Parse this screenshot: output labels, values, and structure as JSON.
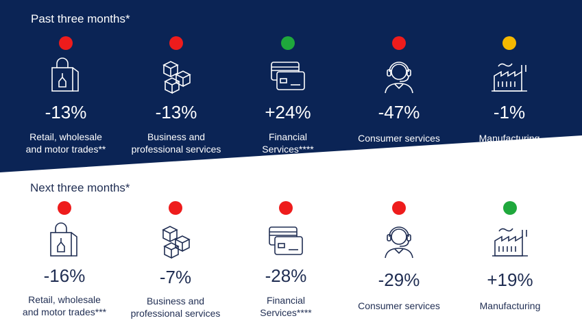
{
  "past": {
    "title": "Past three months*",
    "items": [
      {
        "pct": "-13%",
        "line1": "Retail, wholesale",
        "line2": "and motor trades**",
        "status": "red",
        "icon": "shopping-bag-icon"
      },
      {
        "pct": "-13%",
        "line1": "Business and",
        "line2": "professional services",
        "status": "red",
        "icon": "boxes-icon"
      },
      {
        "pct": "+24%",
        "line1": "Financial",
        "line2": "Services****",
        "status": "green",
        "icon": "credit-cards-icon"
      },
      {
        "pct": "-47%",
        "line1": "Consumer services",
        "line2": "",
        "status": "red",
        "icon": "headset-agent-icon"
      },
      {
        "pct": "-1%",
        "line1": "Manufacturing",
        "line2": "",
        "status": "amber",
        "icon": "factory-icon"
      }
    ]
  },
  "next": {
    "title": "Next three months*",
    "items": [
      {
        "pct": "-16%",
        "line1": "Retail, wholesale",
        "line2": "and motor trades***",
        "status": "red",
        "icon": "shopping-bag-icon"
      },
      {
        "pct": "-7%",
        "line1": "Business and",
        "line2": "professional services",
        "status": "red",
        "icon": "boxes-icon"
      },
      {
        "pct": "-28%",
        "line1": "Financial",
        "line2": "Services****",
        "status": "red",
        "icon": "credit-cards-icon"
      },
      {
        "pct": "-29%",
        "line1": "Consumer services",
        "line2": "",
        "status": "red",
        "icon": "headset-agent-icon"
      },
      {
        "pct": "+19%",
        "line1": "Manufacturing",
        "line2": "",
        "status": "green",
        "icon": "factory-icon"
      }
    ]
  },
  "colors": {
    "band": "#0b2455",
    "red": "#ee1c1c",
    "green": "#1fa83c",
    "amber": "#f5b800",
    "text_dark": "#1f2d52"
  }
}
